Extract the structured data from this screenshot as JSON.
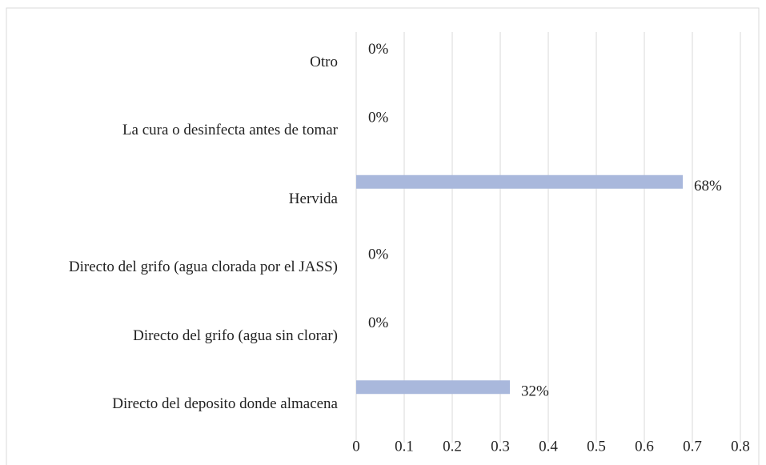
{
  "chart_data": {
    "type": "barh",
    "categories": [
      "Otro",
      "La cura o desinfecta antes de tomar",
      "Hervida",
      "Directo del grifo (agua clorada por el JASS)",
      "Directo del grifo (agua sin clorar)",
      "Directo del deposito donde almacena"
    ],
    "values": [
      0,
      0,
      0.68,
      0,
      0,
      0.32
    ],
    "value_labels": [
      "0%",
      "0%",
      "68%",
      "0%",
      "0%",
      "32%"
    ],
    "color": "#a9b8dc",
    "xlim": [
      0,
      0.8
    ],
    "xticks": [
      0,
      0.1,
      0.2,
      0.3,
      0.4,
      0.5,
      0.6,
      0.7,
      0.8
    ],
    "grid": true
  }
}
